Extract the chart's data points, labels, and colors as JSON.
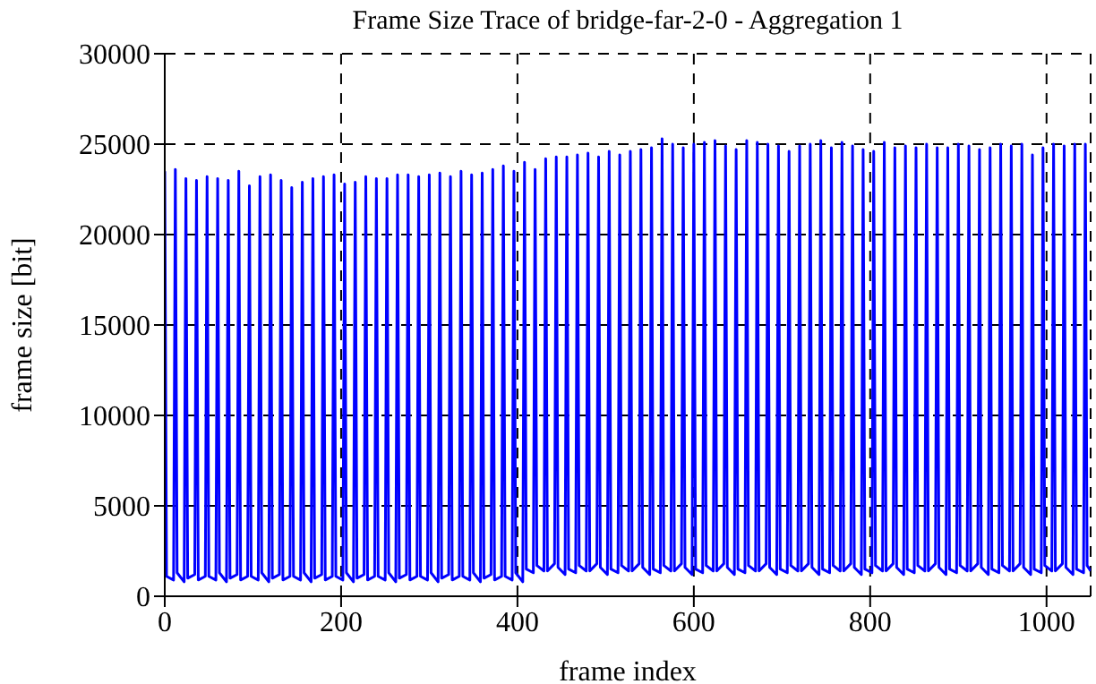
{
  "chart_data": {
    "type": "line",
    "title": "Frame Size Trace of bridge-far-2-0 - Aggregation 1",
    "xlabel": "frame index",
    "ylabel": "frame size [bit]",
    "x": [
      0,
      2,
      10,
      12,
      14,
      22,
      24,
      26,
      34,
      36,
      38,
      46,
      48,
      50,
      58,
      60,
      62,
      70,
      72,
      74,
      82,
      84,
      86,
      94,
      96,
      98,
      106,
      108,
      110,
      118,
      120,
      122,
      130,
      132,
      134,
      142,
      144,
      146,
      154,
      156,
      158,
      166,
      168,
      170,
      178,
      180,
      182,
      190,
      192,
      194,
      202,
      204,
      206,
      214,
      216,
      218,
      226,
      228,
      230,
      238,
      240,
      242,
      250,
      252,
      254,
      262,
      264,
      266,
      274,
      276,
      278,
      286,
      288,
      290,
      298,
      300,
      302,
      310,
      312,
      314,
      322,
      324,
      326,
      334,
      336,
      338,
      346,
      348,
      350,
      358,
      360,
      362,
      370,
      372,
      374,
      382,
      384,
      386,
      394,
      396,
      398,
      406,
      408,
      410,
      418,
      420,
      422,
      430,
      432,
      434,
      442,
      444,
      446,
      454,
      456,
      458,
      466,
      468,
      470,
      478,
      480,
      482,
      490,
      492,
      494,
      502,
      504,
      506,
      514,
      516,
      518,
      526,
      528,
      530,
      538,
      540,
      542,
      550,
      552,
      554,
      562,
      564,
      566,
      574,
      576,
      578,
      586,
      588,
      590,
      598,
      600,
      602,
      610,
      612,
      614,
      622,
      624,
      626,
      634,
      636,
      638,
      646,
      648,
      650,
      658,
      660,
      662,
      670,
      672,
      674,
      682,
      684,
      686,
      694,
      696,
      698,
      706,
      708,
      710,
      718,
      720,
      722,
      730,
      732,
      734,
      742,
      744,
      746,
      754,
      756,
      758,
      766,
      768,
      770,
      778,
      780,
      782,
      790,
      792,
      794,
      802,
      804,
      806,
      814,
      816,
      818,
      826,
      828,
      830,
      838,
      840,
      842,
      850,
      852,
      854,
      862,
      864,
      866,
      874,
      876,
      878,
      886,
      888,
      890,
      898,
      900,
      902,
      910,
      912,
      914,
      922,
      924,
      926,
      934,
      936,
      938,
      946,
      948,
      950,
      958,
      960,
      962,
      970,
      972,
      974,
      982,
      984,
      986,
      994,
      996,
      998,
      1006,
      1008,
      1010,
      1018,
      1020,
      1022,
      1030,
      1032,
      1034,
      1042,
      1044,
      1046,
      1050
    ],
    "series": [
      {
        "color": "#0000ff",
        "values": [
          23500,
          1100,
          900,
          23600,
          1300,
          800,
          23100,
          1000,
          1200,
          23000,
          900,
          1100,
          23200,
          1100,
          900,
          23100,
          1300,
          800,
          23000,
          1000,
          1200,
          23500,
          900,
          1100,
          22700,
          1100,
          900,
          23200,
          1300,
          800,
          23300,
          1000,
          1200,
          23000,
          900,
          1100,
          22600,
          1100,
          900,
          22900,
          1300,
          800,
          23100,
          1000,
          1200,
          23200,
          900,
          1100,
          23300,
          1100,
          900,
          22800,
          1300,
          800,
          22900,
          1000,
          1200,
          23200,
          900,
          1100,
          23100,
          1100,
          900,
          23100,
          1300,
          800,
          23300,
          1000,
          1200,
          23300,
          900,
          1100,
          23200,
          1100,
          900,
          23300,
          1300,
          800,
          23400,
          1000,
          1200,
          23200,
          900,
          1100,
          23500,
          1100,
          900,
          23300,
          1300,
          800,
          23400,
          1000,
          1200,
          23600,
          900,
          1100,
          23800,
          1100,
          900,
          23500,
          1300,
          800,
          24000,
          1500,
          1300,
          23600,
          1700,
          1400,
          24200,
          1400,
          1800,
          24300,
          1600,
          1200,
          24300,
          1500,
          1300,
          24400,
          1700,
          1400,
          24500,
          1400,
          1800,
          24300,
          1600,
          1200,
          24600,
          1500,
          1300,
          24400,
          1700,
          1400,
          24600,
          1400,
          1800,
          24700,
          1600,
          1200,
          24800,
          1500,
          1300,
          25300,
          1700,
          1400,
          25000,
          1400,
          1800,
          24800,
          1600,
          1200,
          25000,
          1500,
          1300,
          25100,
          1700,
          1400,
          25200,
          1400,
          1800,
          24900,
          1600,
          1200,
          24700,
          1500,
          1300,
          25200,
          1700,
          1400,
          25100,
          1400,
          1800,
          25000,
          1600,
          1200,
          24900,
          1500,
          1300,
          24600,
          1700,
          1400,
          24900,
          1400,
          1800,
          25000,
          1600,
          1200,
          25200,
          1500,
          1300,
          24800,
          1700,
          1400,
          25100,
          1400,
          1800,
          24900,
          1600,
          1200,
          24700,
          1500,
          1300,
          24600,
          1700,
          1400,
          25100,
          1400,
          1800,
          24800,
          1600,
          1200,
          24900,
          1500,
          1300,
          24800,
          1700,
          1400,
          25000,
          1400,
          1800,
          24800,
          1600,
          1200,
          24800,
          1500,
          1300,
          25000,
          1700,
          1400,
          24900,
          1400,
          1800,
          24700,
          1600,
          1200,
          24800,
          1500,
          1300,
          25000,
          1700,
          1400,
          24900,
          1400,
          1800,
          25000,
          1600,
          1200,
          24400,
          1500,
          1300,
          24800,
          1700,
          1400,
          25000,
          1400,
          1800,
          24900,
          1600,
          1200,
          25000,
          1500,
          1300,
          25000,
          1700,
          1400
        ]
      }
    ],
    "xlim": [
      0,
      1050
    ],
    "xticks": [
      0,
      200,
      400,
      600,
      800,
      1000
    ],
    "ylim": [
      0,
      30000
    ],
    "yticks": [
      0,
      5000,
      10000,
      15000,
      20000,
      25000,
      30000
    ],
    "grid": true,
    "legend": false,
    "marker": "none",
    "line_style": "solid"
  }
}
